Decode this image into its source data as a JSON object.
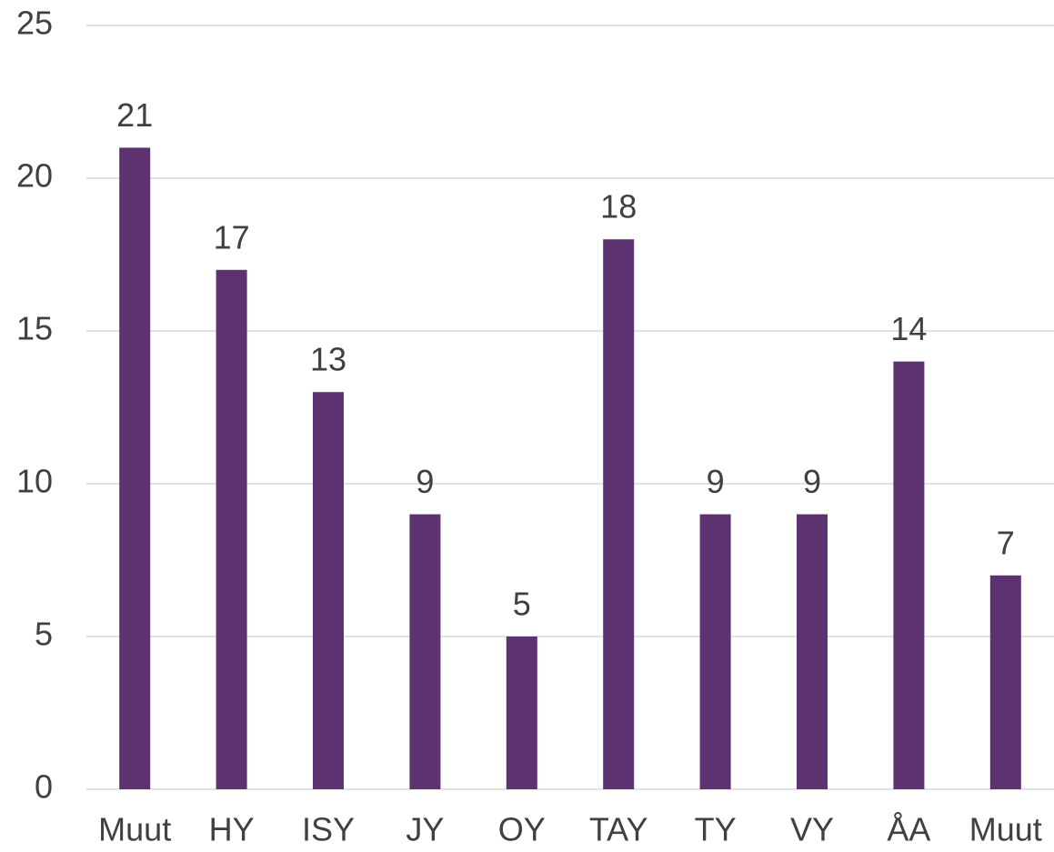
{
  "chart_data": {
    "type": "bar",
    "categories": [
      "Muut",
      "HY",
      "ISY",
      "JY",
      "OY",
      "TAY",
      "TY",
      "VY",
      "ÅA",
      "Muut"
    ],
    "values": [
      21,
      17,
      13,
      9,
      5,
      18,
      9,
      9,
      14,
      7
    ],
    "color": "#5c3270",
    "ylim": [
      0,
      25
    ],
    "yticks": [
      0,
      5,
      10,
      15,
      20,
      25
    ],
    "grid": true
  }
}
